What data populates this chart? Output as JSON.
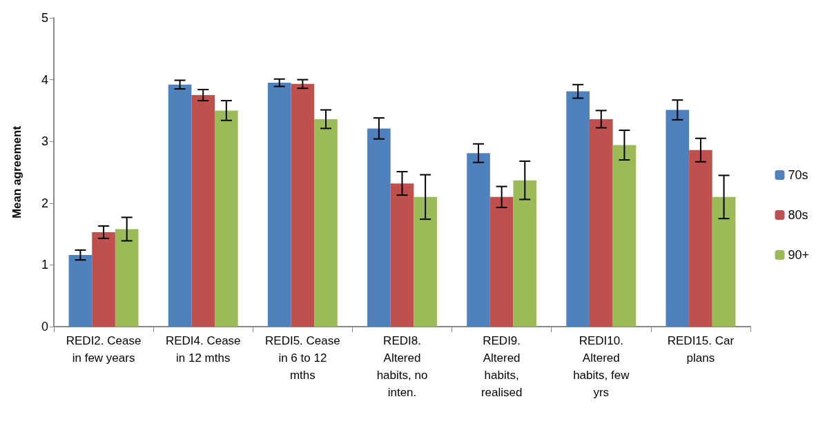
{
  "chart_data": {
    "type": "bar",
    "ylabel": "Mean agreement",
    "categories": [
      "REDI2. Cease\nin few years",
      "REDI4. Cease\nin 12 mths",
      "REDI5. Cease\nin 6 to 12\nmths",
      "REDI8.\nAltered\nhabits, no\ninten.",
      "REDI9.\nAltered\nhabits,\nrealised",
      "REDI10.\nAltered\nhabits, few\nyrs",
      "REDI15. Car\nplans"
    ],
    "series": [
      {
        "name": "70s",
        "color": "#4f81bd",
        "values": [
          1.16,
          3.92,
          3.95,
          3.21,
          2.81,
          3.81,
          3.51
        ],
        "errors": [
          0.08,
          0.07,
          0.06,
          0.17,
          0.15,
          0.11,
          0.16
        ]
      },
      {
        "name": "80s",
        "color": "#c0504d",
        "values": [
          1.53,
          3.75,
          3.93,
          2.32,
          2.1,
          3.36,
          2.86
        ],
        "errors": [
          0.1,
          0.09,
          0.07,
          0.19,
          0.17,
          0.14,
          0.19
        ]
      },
      {
        "name": "90+",
        "color": "#9bbb59",
        "values": [
          1.58,
          3.5,
          3.36,
          2.1,
          2.37,
          2.94,
          2.1
        ],
        "errors": [
          0.19,
          0.16,
          0.15,
          0.36,
          0.31,
          0.24,
          0.35
        ]
      }
    ],
    "ylim": [
      0,
      5
    ],
    "yticks": [
      0,
      1,
      2,
      3,
      4,
      5
    ],
    "grid": false,
    "legend": "right"
  }
}
